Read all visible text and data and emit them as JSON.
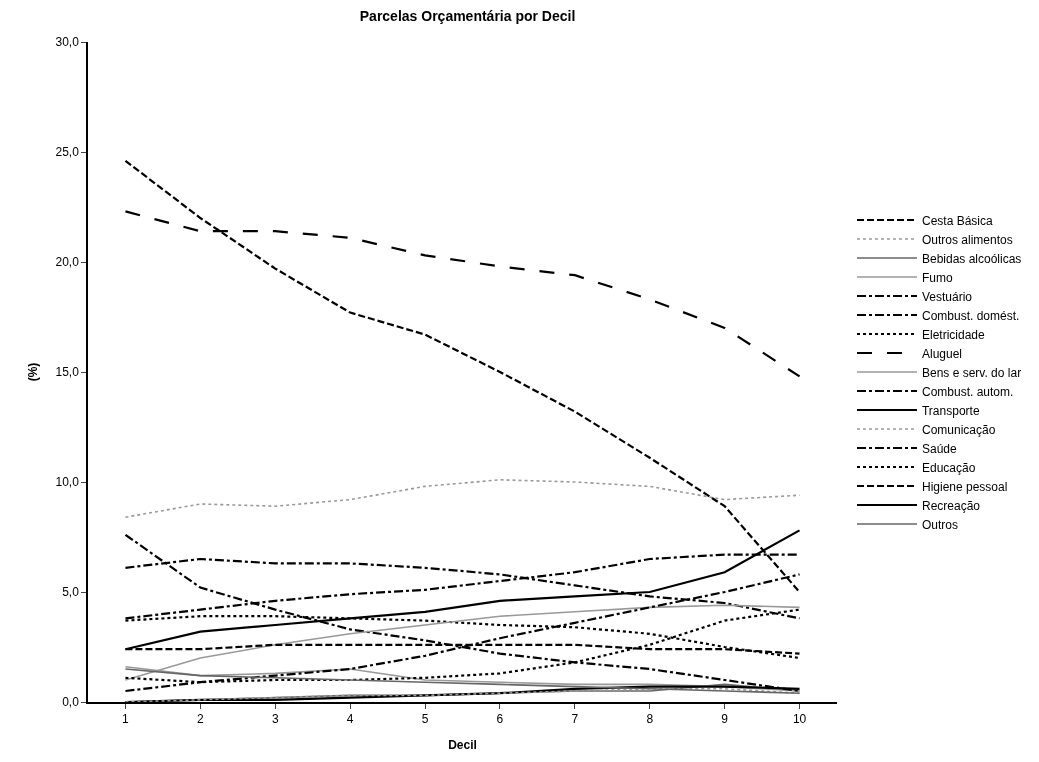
{
  "chart_data": {
    "type": "line",
    "title": "Parcelas Orçamentária por Decil",
    "xlabel": "Decil",
    "ylabel": "(%)",
    "categories": [
      "1",
      "2",
      "3",
      "4",
      "5",
      "6",
      "7",
      "8",
      "9",
      "10"
    ],
    "ylim": [
      0,
      30
    ],
    "yticks": [
      {
        "value": 0,
        "label": "0,0"
      },
      {
        "value": 5,
        "label": "5,0"
      },
      {
        "value": 10,
        "label": "10,0"
      },
      {
        "value": 15,
        "label": "15,0"
      },
      {
        "value": 20,
        "label": "20,0"
      },
      {
        "value": 25,
        "label": "25,0"
      },
      {
        "value": 30,
        "label": "30,0"
      }
    ],
    "legend": "right",
    "marker": "none",
    "series": [
      {
        "name": "Cesta Básica",
        "color": "#000000",
        "line_style": "dashed",
        "values": [
          24.6,
          22.0,
          19.7,
          17.7,
          16.7,
          15.0,
          13.2,
          11.1,
          8.9,
          5.0
        ]
      },
      {
        "name": "Outros alimentos",
        "color": "#999999",
        "line_style": "dotted",
        "values": [
          8.4,
          9.0,
          8.9,
          9.2,
          9.8,
          10.1,
          10.0,
          9.8,
          9.2,
          9.4
        ]
      },
      {
        "name": "Bebidas alcoólicas",
        "color": "#666666",
        "line_style": "solid",
        "values": [
          0.0,
          0.1,
          0.2,
          0.3,
          0.3,
          0.4,
          0.5,
          0.5,
          0.8,
          0.5
        ]
      },
      {
        "name": "Fumo",
        "color": "#999999",
        "line_style": "solid",
        "values": [
          1.6,
          1.2,
          1.3,
          1.5,
          1.0,
          0.9,
          0.8,
          0.8,
          0.7,
          0.5
        ]
      },
      {
        "name": "Vestuário",
        "color": "#000000",
        "line_style": "dashdot",
        "values": [
          7.6,
          5.2,
          4.2,
          3.3,
          2.8,
          2.2,
          1.8,
          1.5,
          1.0,
          0.5
        ]
      },
      {
        "name": "Combust. domést.",
        "color": "#000000",
        "line_style": "dashdot",
        "values": [
          6.1,
          6.5,
          6.3,
          6.3,
          6.1,
          5.8,
          5.3,
          4.8,
          4.5,
          3.8
        ]
      },
      {
        "name": "Eletricidade",
        "color": "#000000",
        "line_style": "dotted",
        "values": [
          3.7,
          3.9,
          3.9,
          3.8,
          3.7,
          3.5,
          3.4,
          3.1,
          2.5,
          2.0
        ]
      },
      {
        "name": "Aluguel",
        "color": "#000000",
        "line_style": "longdash",
        "values": [
          22.3,
          21.4,
          21.4,
          21.1,
          20.3,
          19.8,
          19.4,
          18.3,
          17.0,
          14.8
        ]
      },
      {
        "name": "Bens e serv. do lar",
        "color": "#999999",
        "line_style": "solid",
        "values": [
          1.0,
          2.0,
          2.6,
          3.1,
          3.5,
          3.9,
          4.1,
          4.3,
          4.4,
          4.3
        ]
      },
      {
        "name": "Combust. autom.",
        "color": "#000000",
        "line_style": "dashdot",
        "values": [
          0.5,
          0.9,
          1.2,
          1.5,
          2.1,
          2.9,
          3.6,
          4.3,
          5.0,
          5.8
        ]
      },
      {
        "name": "Transporte",
        "color": "#000000",
        "line_style": "solid",
        "values": [
          0.0,
          0.1,
          0.1,
          0.2,
          0.3,
          0.4,
          0.6,
          0.7,
          0.7,
          0.6
        ]
      },
      {
        "name": "Comunicação",
        "color": "#999999",
        "line_style": "dotted",
        "values": [
          0.0,
          0.1,
          0.2,
          0.3,
          0.3,
          0.4,
          0.5,
          0.6,
          0.6,
          0.4
        ]
      },
      {
        "name": "Saúde",
        "color": "#000000",
        "line_style": "dashdot",
        "values": [
          3.8,
          4.2,
          4.6,
          4.9,
          5.1,
          5.5,
          5.9,
          6.5,
          6.7,
          6.7
        ]
      },
      {
        "name": "Educação",
        "color": "#000000",
        "line_style": "dotted",
        "values": [
          1.1,
          0.9,
          1.0,
          1.0,
          1.1,
          1.3,
          1.8,
          2.6,
          3.7,
          4.2
        ]
      },
      {
        "name": "Higiene pessoal",
        "color": "#000000",
        "line_style": "dashed",
        "values": [
          2.4,
          2.4,
          2.6,
          2.6,
          2.6,
          2.6,
          2.6,
          2.4,
          2.4,
          2.2
        ]
      },
      {
        "name": "Recreação",
        "color": "#000000",
        "line_style": "solid",
        "values": [
          2.4,
          3.2,
          3.5,
          3.8,
          4.1,
          4.6,
          4.8,
          5.0,
          5.9,
          7.8
        ]
      },
      {
        "name": "Outros",
        "color": "#666666",
        "line_style": "solid",
        "values": [
          1.5,
          1.2,
          1.1,
          1.0,
          0.9,
          0.8,
          0.7,
          0.6,
          0.5,
          0.4
        ]
      }
    ]
  }
}
